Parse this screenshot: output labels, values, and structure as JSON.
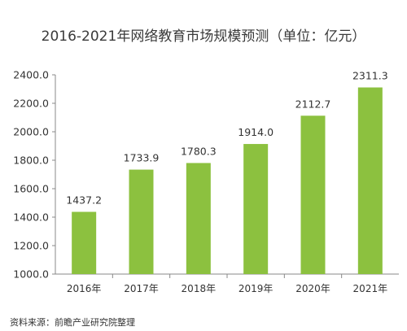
{
  "chart_data": {
    "type": "bar",
    "title": "2016-2021年网络教育市场规模预测（单位：亿元）",
    "categories": [
      "2016年",
      "2017年",
      "2018年",
      "2019年",
      "2020年",
      "2021年"
    ],
    "values": [
      1437.2,
      1733.9,
      1780.3,
      1914.0,
      2112.7,
      2311.3
    ],
    "value_labels": [
      "1437.2",
      "1733.9",
      "1780.3",
      "1914.0",
      "2112.7",
      "2311.3"
    ],
    "ylim": [
      1000,
      2400
    ],
    "yticks": [
      1000,
      1200,
      1400,
      1600,
      1800,
      2000,
      2200,
      2400
    ],
    "ytick_labels": [
      "1000.0",
      "1200.0",
      "1400.0",
      "1600.0",
      "1800.0",
      "2000.0",
      "2200.0",
      "2400.0"
    ],
    "grid": false,
    "legend": "none",
    "bar_color": "#8cc13f",
    "source": "资料来源：前瞻产业研究院整理"
  }
}
